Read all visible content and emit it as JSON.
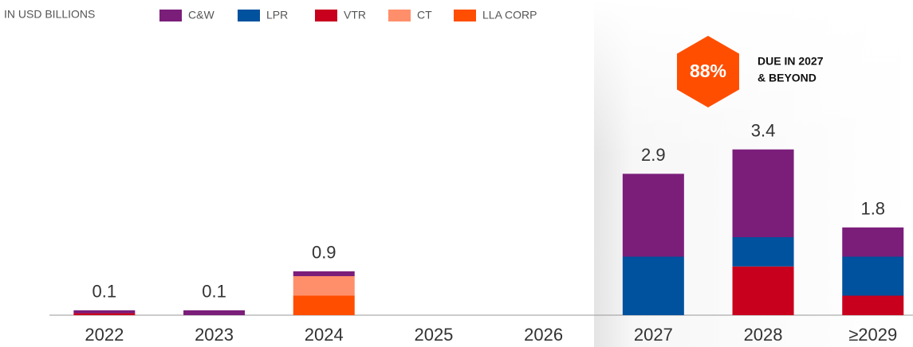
{
  "chart_data": {
    "type": "stacked_bar",
    "unit_label": "IN USD BILLIONS",
    "categories": [
      "2022",
      "2023",
      "2024",
      "2025",
      "2026",
      "2027",
      "2028",
      "≥2029"
    ],
    "series": [
      {
        "name": "C&W",
        "color": "#7b1e7a",
        "values": [
          0.06,
          0.1,
          0.1,
          null,
          null,
          1.7,
          1.8,
          0.6
        ]
      },
      {
        "name": "LPR",
        "color": "#00519e",
        "values": [
          null,
          null,
          null,
          null,
          null,
          1.2,
          0.6,
          0.8
        ]
      },
      {
        "name": "VTR",
        "color": "#c8001e",
        "values": [
          0.04,
          null,
          null,
          null,
          null,
          null,
          1.0,
          0.4
        ]
      },
      {
        "name": "CT",
        "color": "#ff8f6b",
        "values": [
          null,
          null,
          0.4,
          null,
          null,
          null,
          null,
          null
        ]
      },
      {
        "name": "LLA CORP",
        "color": "#ff4e00",
        "values": [
          null,
          null,
          0.4,
          null,
          null,
          null,
          null,
          null
        ]
      }
    ],
    "totals": [
      0.1,
      0.1,
      0.9,
      null,
      null,
      2.9,
      3.4,
      1.8
    ],
    "ylim": [
      0,
      5.6
    ],
    "badge": {
      "value": "88%",
      "color": "#ff4e00",
      "lines": [
        "DUE IN 2027",
        "& BEYOND"
      ]
    }
  }
}
